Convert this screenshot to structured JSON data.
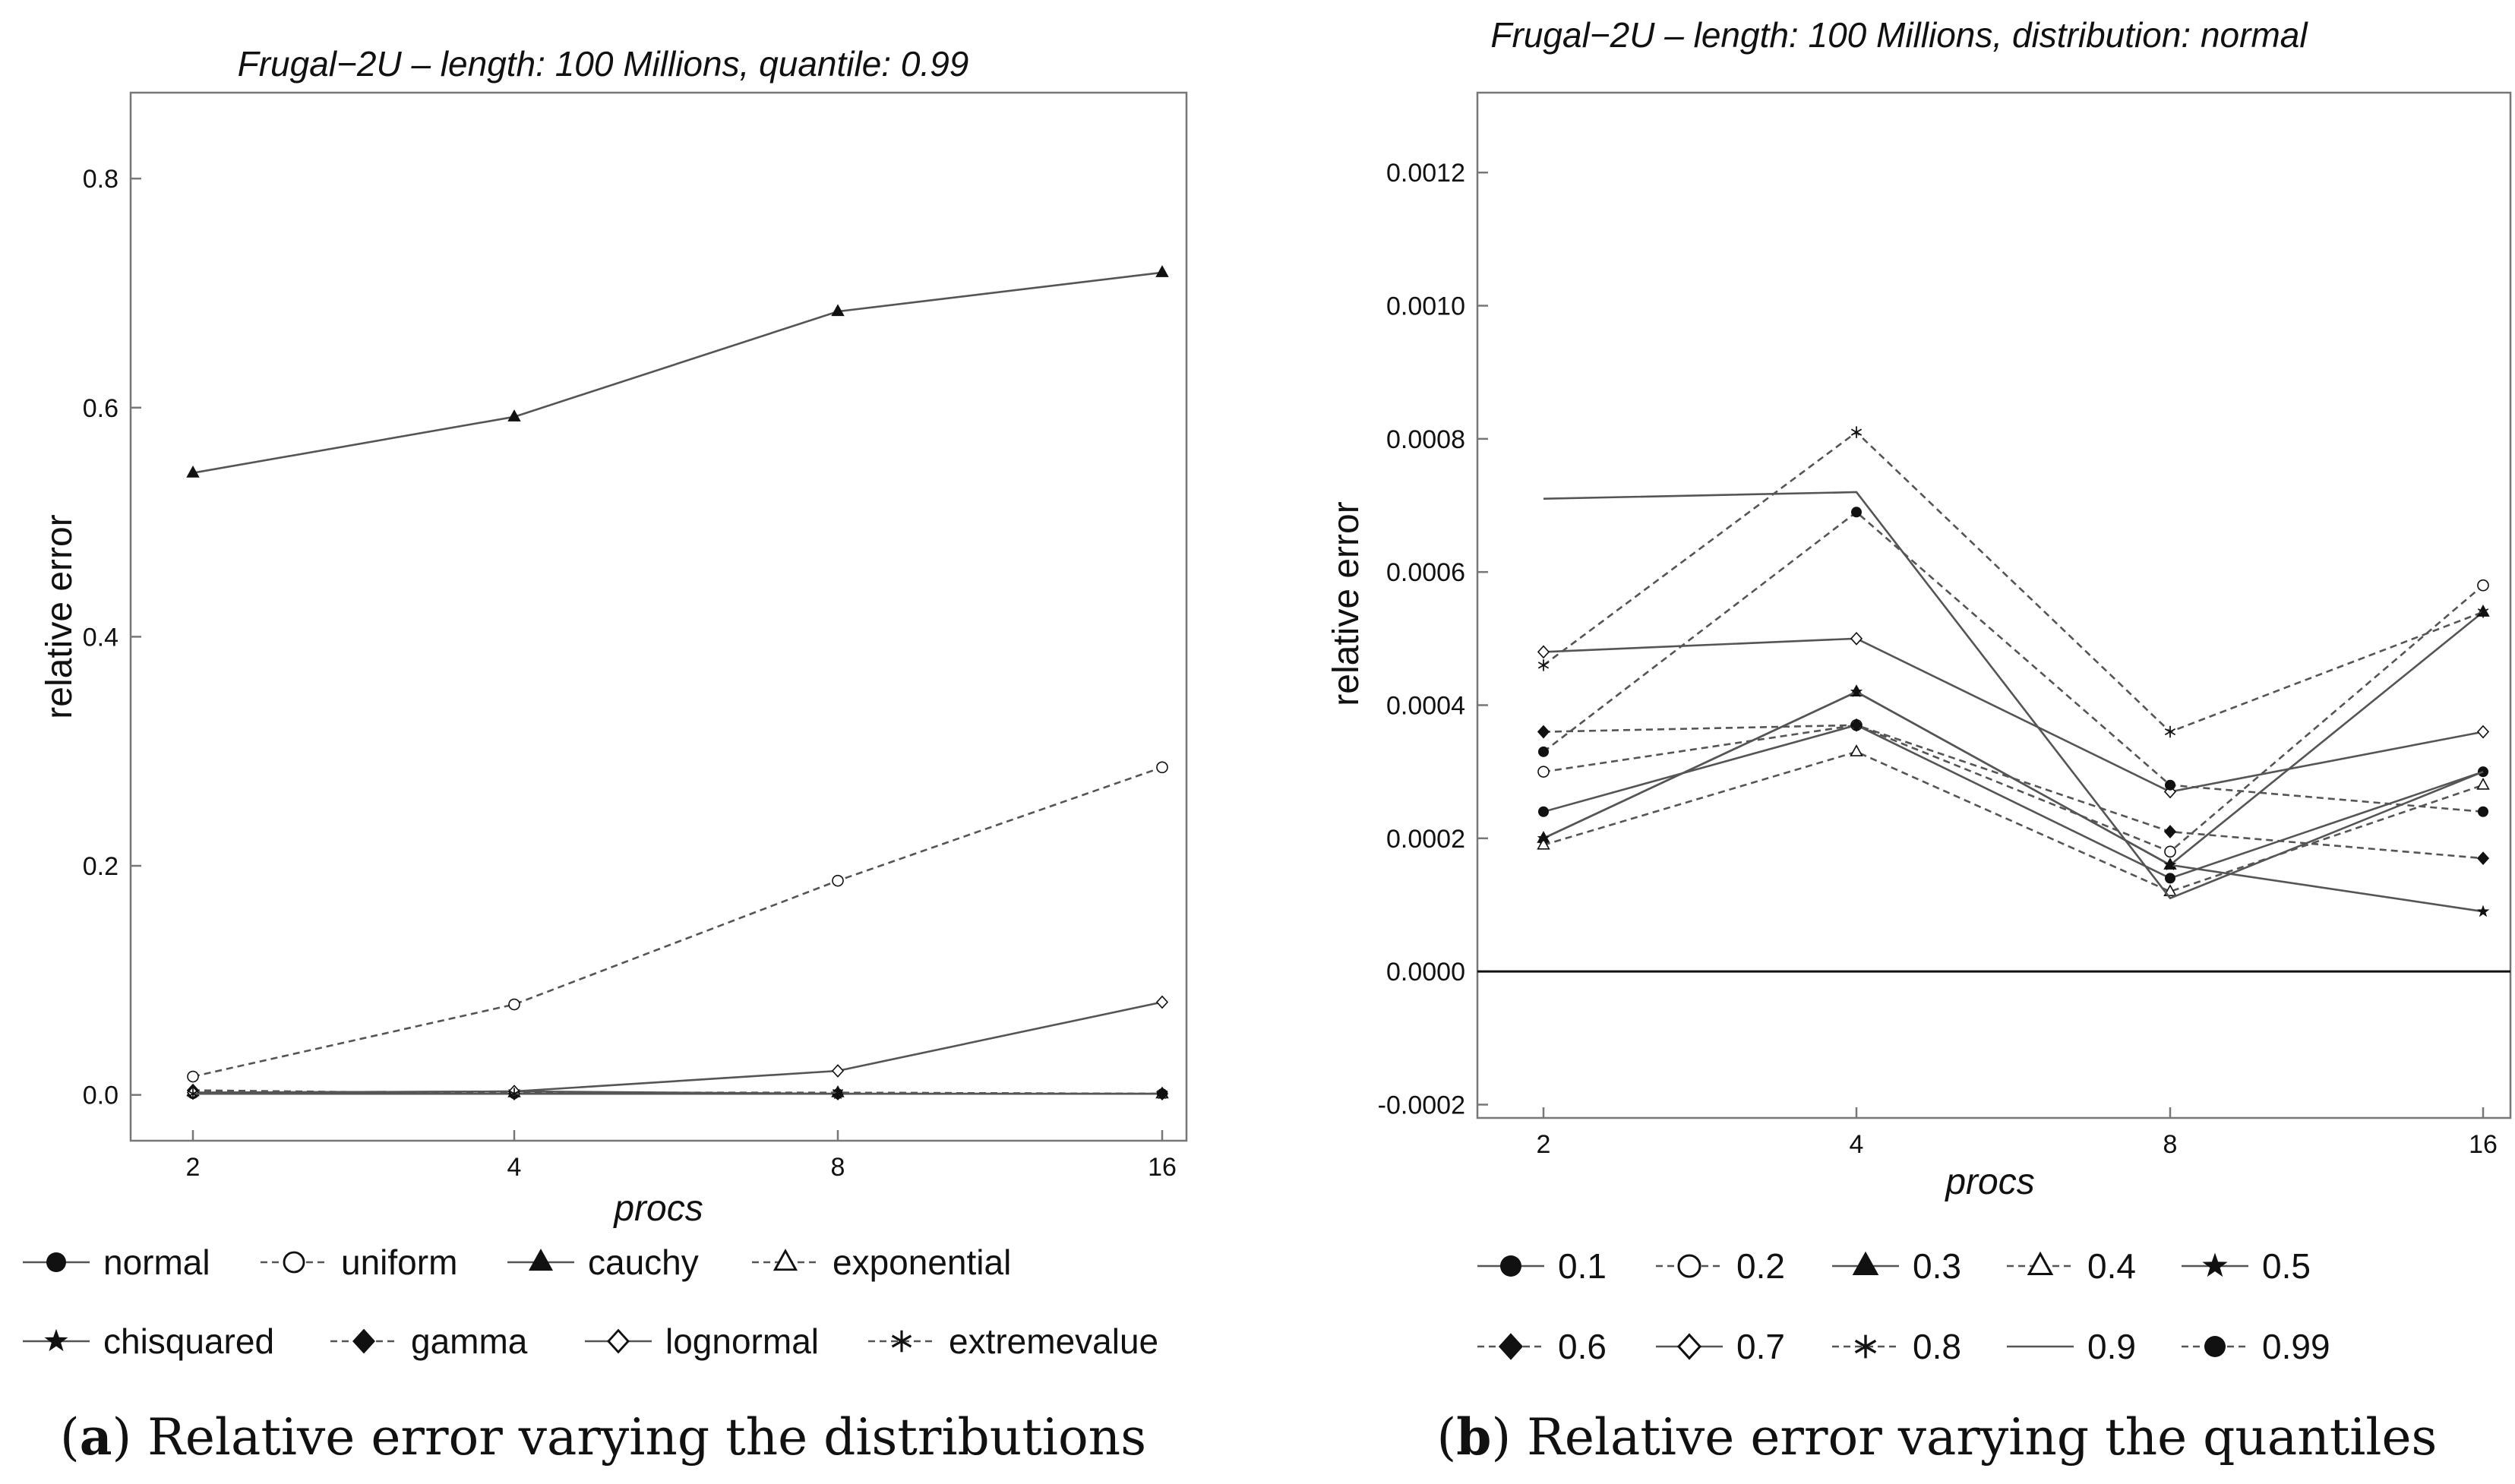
{
  "colors": {
    "line": "#555555",
    "marker": "#111111",
    "frame": "#777777",
    "zero": "#111111"
  },
  "chart_data": [
    {
      "type": "line",
      "title": "Frugal−2U – length: 100 Millions, quantile: 0.99",
      "xlabel": "procs",
      "ylabel": "relative error",
      "categories": [
        "2",
        "4",
        "8",
        "16"
      ],
      "ylim": [
        -0.04,
        0.875
      ],
      "yticks": [
        0.0,
        0.2,
        0.4,
        0.6,
        0.8
      ],
      "ytick_labels": [
        "0.0",
        "0.2",
        "0.4",
        "0.6",
        "0.8"
      ],
      "zero_line": false,
      "caption_label": "a",
      "caption_text": ") Relative error varying the distributions",
      "series": [
        {
          "name": "normal",
          "marker": "dot",
          "dash": false,
          "values": [
            0.001,
            0.001,
            0.001,
            0.001
          ]
        },
        {
          "name": "uniform",
          "marker": "circle",
          "dash": true,
          "values": [
            0.016,
            0.079,
            0.187,
            0.286
          ]
        },
        {
          "name": "cauchy",
          "marker": "triangle",
          "dash": false,
          "values": [
            0.543,
            0.592,
            0.684,
            0.718
          ]
        },
        {
          "name": "exponential",
          "marker": "triangle-open",
          "dash": true,
          "values": [
            0.003,
            0.002,
            0.002,
            0.001
          ]
        },
        {
          "name": "chisquared",
          "marker": "star",
          "dash": false,
          "values": [
            0.002,
            0.003,
            0.001,
            0.001
          ]
        },
        {
          "name": "gamma",
          "marker": "diamond",
          "dash": true,
          "values": [
            0.004,
            0.001,
            0.001,
            0.001
          ]
        },
        {
          "name": "lognormal",
          "marker": "diamond-open",
          "dash": false,
          "values": [
            0.002,
            0.003,
            0.021,
            0.081
          ]
        },
        {
          "name": "extremevalue",
          "marker": "asterisk",
          "dash": true,
          "values": [
            0.001,
            0.001,
            0.002,
            0.001
          ]
        }
      ]
    },
    {
      "type": "line",
      "title": "Frugal−2U – length: 100 Millions, distribution: normal",
      "xlabel": "procs",
      "ylabel": "relative error",
      "categories": [
        "2",
        "4",
        "8",
        "16"
      ],
      "ylim": [
        -0.00022,
        0.00132
      ],
      "yticks": [
        -0.0002,
        0.0,
        0.0002,
        0.0004,
        0.0006,
        0.0008,
        0.001,
        0.0012
      ],
      "ytick_labels": [
        "-0.0002",
        "0.0000",
        "0.0002",
        "0.0004",
        "0.0006",
        "0.0008",
        "0.0010",
        "0.0012"
      ],
      "zero_line": true,
      "caption_label": "b",
      "caption_text": ") Relative error varying the quantiles",
      "series": [
        {
          "name": "0.1",
          "marker": "dot",
          "dash": false,
          "values": [
            0.00024,
            0.00037,
            0.00014,
            0.0003
          ]
        },
        {
          "name": "0.2",
          "marker": "circle",
          "dash": true,
          "values": [
            0.0003,
            0.00037,
            0.00018,
            0.00058
          ]
        },
        {
          "name": "0.3",
          "marker": "triangle",
          "dash": false,
          "values": [
            0.0002,
            0.00042,
            0.00016,
            0.00054
          ]
        },
        {
          "name": "0.4",
          "marker": "triangle-open",
          "dash": true,
          "values": [
            0.00019,
            0.00033,
            0.00012,
            0.00028
          ]
        },
        {
          "name": "0.5",
          "marker": "star",
          "dash": false,
          "values": [
            0.0002,
            0.00042,
            0.00016,
            9e-05
          ]
        },
        {
          "name": "0.6",
          "marker": "diamond",
          "dash": true,
          "values": [
            0.00036,
            0.00037,
            0.00021,
            0.00017
          ]
        },
        {
          "name": "0.7",
          "marker": "diamond-open",
          "dash": false,
          "values": [
            0.00048,
            0.0005,
            0.00027,
            0.00036
          ]
        },
        {
          "name": "0.8",
          "marker": "asterisk",
          "dash": true,
          "values": [
            0.00046,
            0.00081,
            0.00036,
            0.00054
          ]
        },
        {
          "name": "0.9",
          "marker": "none",
          "dash": false,
          "values": [
            0.00071,
            0.00072,
            0.00011,
            0.0003
          ]
        },
        {
          "name": "0.99",
          "marker": "dot",
          "dash": true,
          "values": [
            0.00033,
            0.00069,
            0.00028,
            0.00024
          ]
        }
      ]
    }
  ]
}
